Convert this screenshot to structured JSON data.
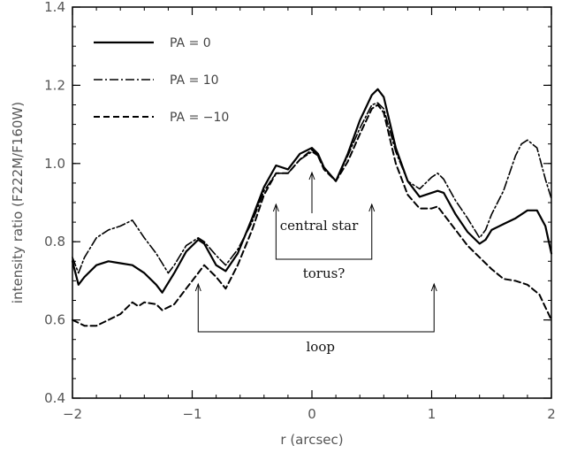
{
  "chart_data": {
    "type": "line",
    "xlabel": "r (arcsec)",
    "ylabel": "intensity ratio (F222M/F160W)",
    "xlim": [
      -2,
      2
    ],
    "ylim": [
      0.4,
      1.4
    ],
    "xticks": [
      "-2",
      "-1",
      "0",
      "1",
      "2"
    ],
    "yticks": [
      "0.4",
      "0.6",
      "0.8",
      "1.0",
      "1.2",
      "1.4"
    ],
    "grid": false,
    "legend_position": "top-left",
    "series": [
      {
        "name": "PA = 0",
        "style": "solid",
        "x": [
          -2.0,
          -1.95,
          -1.9,
          -1.8,
          -1.7,
          -1.6,
          -1.5,
          -1.4,
          -1.3,
          -1.25,
          -1.15,
          -1.05,
          -0.95,
          -0.9,
          -0.8,
          -0.72,
          -0.62,
          -0.5,
          -0.4,
          -0.3,
          -0.2,
          -0.1,
          0.0,
          0.05,
          0.1,
          0.2,
          0.3,
          0.4,
          0.5,
          0.55,
          0.6,
          0.7,
          0.8,
          0.9,
          1.0,
          1.05,
          1.1,
          1.2,
          1.3,
          1.4,
          1.45,
          1.5,
          1.6,
          1.7,
          1.8,
          1.88,
          1.95,
          2.0
        ],
        "y": [
          0.75,
          0.69,
          0.71,
          0.74,
          0.75,
          0.745,
          0.74,
          0.72,
          0.69,
          0.67,
          0.72,
          0.775,
          0.805,
          0.795,
          0.74,
          0.725,
          0.77,
          0.86,
          0.94,
          0.995,
          0.985,
          1.025,
          1.04,
          1.025,
          0.99,
          0.955,
          1.025,
          1.11,
          1.175,
          1.19,
          1.17,
          1.04,
          0.955,
          0.915,
          0.925,
          0.93,
          0.925,
          0.87,
          0.825,
          0.795,
          0.805,
          0.83,
          0.845,
          0.86,
          0.88,
          0.88,
          0.84,
          0.77
        ]
      },
      {
        "name": "PA = 10",
        "style": "dashdot",
        "x": [
          -2.0,
          -1.95,
          -1.9,
          -1.8,
          -1.7,
          -1.6,
          -1.5,
          -1.4,
          -1.3,
          -1.2,
          -1.15,
          -1.05,
          -0.95,
          -0.9,
          -0.8,
          -0.72,
          -0.62,
          -0.5,
          -0.4,
          -0.3,
          -0.2,
          -0.1,
          0.0,
          0.05,
          0.1,
          0.2,
          0.3,
          0.4,
          0.5,
          0.55,
          0.6,
          0.7,
          0.8,
          0.9,
          1.0,
          1.05,
          1.1,
          1.2,
          1.3,
          1.4,
          1.45,
          1.5,
          1.6,
          1.7,
          1.75,
          1.8,
          1.88,
          1.95,
          2.0
        ],
        "y": [
          0.76,
          0.72,
          0.76,
          0.81,
          0.83,
          0.84,
          0.855,
          0.81,
          0.77,
          0.72,
          0.74,
          0.79,
          0.81,
          0.8,
          0.765,
          0.74,
          0.78,
          0.85,
          0.93,
          0.975,
          0.975,
          1.01,
          1.03,
          1.02,
          0.99,
          0.955,
          1.02,
          1.09,
          1.15,
          1.155,
          1.14,
          1.03,
          0.955,
          0.935,
          0.965,
          0.975,
          0.96,
          0.905,
          0.86,
          0.81,
          0.83,
          0.87,
          0.93,
          1.02,
          1.05,
          1.06,
          1.04,
          0.96,
          0.91
        ]
      },
      {
        "name": "PA = −10",
        "style": "dashed",
        "x": [
          -2.0,
          -1.9,
          -1.8,
          -1.7,
          -1.6,
          -1.5,
          -1.45,
          -1.4,
          -1.3,
          -1.25,
          -1.15,
          -1.05,
          -0.95,
          -0.9,
          -0.8,
          -0.72,
          -0.62,
          -0.5,
          -0.4,
          -0.3,
          -0.2,
          -0.1,
          0.0,
          0.05,
          0.1,
          0.2,
          0.3,
          0.4,
          0.5,
          0.55,
          0.6,
          0.7,
          0.8,
          0.9,
          1.0,
          1.05,
          1.1,
          1.2,
          1.3,
          1.4,
          1.5,
          1.6,
          1.7,
          1.8,
          1.9,
          2.0
        ],
        "y": [
          0.6,
          0.585,
          0.585,
          0.6,
          0.615,
          0.645,
          0.635,
          0.645,
          0.64,
          0.625,
          0.64,
          0.68,
          0.72,
          0.74,
          0.71,
          0.68,
          0.74,
          0.83,
          0.92,
          0.975,
          0.975,
          1.01,
          1.035,
          1.02,
          0.985,
          0.955,
          1.005,
          1.075,
          1.14,
          1.15,
          1.13,
          1.0,
          0.92,
          0.885,
          0.885,
          0.89,
          0.87,
          0.83,
          0.79,
          0.76,
          0.73,
          0.705,
          0.7,
          0.69,
          0.665,
          0.6
        ]
      }
    ],
    "annotations": [
      {
        "name": "central-star",
        "text": "central star",
        "points_at": [
          0,
          1.0
        ]
      },
      {
        "name": "torus",
        "text": "torus?",
        "bracket": [
          -0.3,
          0.5
        ]
      },
      {
        "name": "loop",
        "text": "loop",
        "bracket": [
          -0.95,
          1.02
        ]
      }
    ]
  }
}
